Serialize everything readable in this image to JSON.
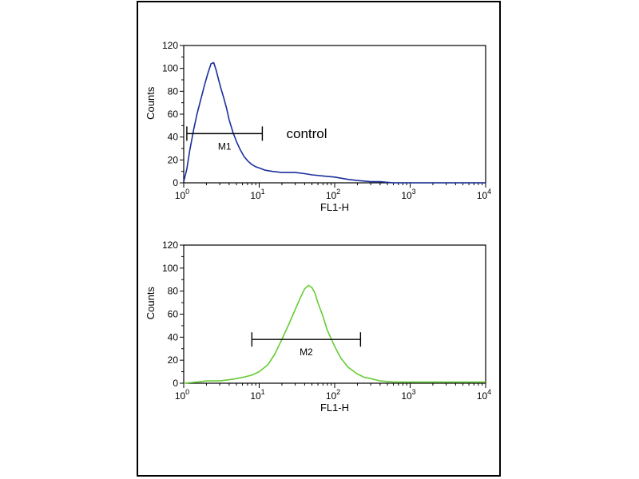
{
  "chart_data": [
    {
      "type": "line",
      "xscale": "log",
      "xlim": [
        1,
        10000
      ],
      "ylim": [
        0,
        120
      ],
      "xlabel": "FL1-H",
      "ylabel": "Counts",
      "yticks": [
        "0",
        "20",
        "40",
        "60",
        "80",
        "100",
        "120"
      ],
      "xticks": [
        {
          "base": "10",
          "exp": "0"
        },
        {
          "base": "10",
          "exp": "1"
        },
        {
          "base": "10",
          "exp": "2"
        },
        {
          "base": "10",
          "exp": "3"
        },
        {
          "base": "10",
          "exp": "4"
        }
      ],
      "annotation": "control",
      "marker": {
        "label": "M1",
        "from": 1.1,
        "to": 11,
        "y": 43
      },
      "series": [
        {
          "color": "#1a2f9c",
          "x": [
            1.0,
            1.1,
            1.2,
            1.35,
            1.5,
            1.7,
            1.9,
            2.1,
            2.3,
            2.5,
            2.7,
            2.9,
            3.1,
            3.4,
            3.7,
            4.0,
            4.5,
            5.0,
            5.6,
            6.3,
            7.1,
            8.0,
            9.0,
            10,
            12,
            15,
            20,
            25,
            30,
            40,
            50,
            70,
            100,
            150,
            200,
            300,
            400,
            600,
            1000,
            2000,
            5000,
            10000
          ],
          "y": [
            1,
            12,
            28,
            46,
            60,
            74,
            86,
            96,
            104,
            105,
            98,
            90,
            83,
            74,
            65,
            55,
            44,
            36,
            29,
            23,
            19,
            16,
            14,
            13,
            11,
            10,
            9,
            9,
            9,
            8,
            7,
            6,
            5,
            3,
            2,
            1,
            1,
            0,
            0,
            0,
            0,
            0
          ]
        }
      ]
    },
    {
      "type": "line",
      "xscale": "log",
      "xlim": [
        1,
        10000
      ],
      "ylim": [
        0,
        120
      ],
      "xlabel": "FL1-H",
      "ylabel": "Counts",
      "yticks": [
        "0",
        "20",
        "40",
        "60",
        "80",
        "100",
        "120"
      ],
      "xticks": [
        {
          "base": "10",
          "exp": "0"
        },
        {
          "base": "10",
          "exp": "1"
        },
        {
          "base": "10",
          "exp": "2"
        },
        {
          "base": "10",
          "exp": "3"
        },
        {
          "base": "10",
          "exp": "4"
        }
      ],
      "marker": {
        "label": "M2",
        "from": 8,
        "to": 220,
        "y": 38
      },
      "series": [
        {
          "color": "#66cc33",
          "x": [
            1.0,
            1.5,
            2,
            3,
            4,
            5,
            6,
            8,
            10,
            13,
            16,
            20,
            25,
            30,
            35,
            40,
            45,
            50,
            55,
            60,
            70,
            80,
            100,
            120,
            150,
            200,
            250,
            300,
            400,
            600,
            1000,
            2000,
            5000,
            10000
          ],
          "y": [
            0,
            1,
            2,
            2,
            3,
            4,
            5,
            7,
            10,
            16,
            25,
            38,
            52,
            64,
            74,
            82,
            85,
            83,
            78,
            70,
            58,
            46,
            32,
            22,
            14,
            8,
            5,
            4,
            2,
            1,
            1,
            1,
            1,
            1
          ]
        }
      ]
    }
  ]
}
